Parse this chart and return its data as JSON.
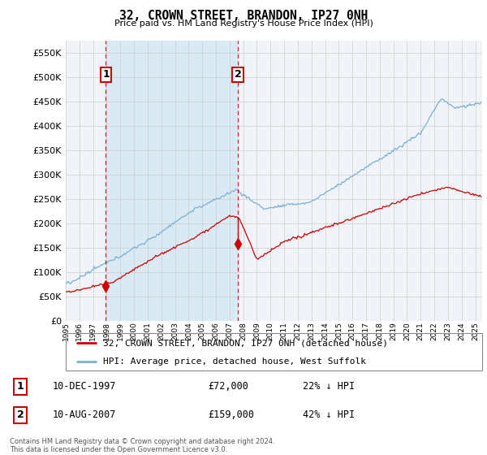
{
  "title": "32, CROWN STREET, BRANDON, IP27 0NH",
  "subtitle": "Price paid vs. HM Land Registry's House Price Index (HPI)",
  "hpi_label": "HPI: Average price, detached house, West Suffolk",
  "property_label": "32, CROWN STREET, BRANDON, IP27 0NH (detached house)",
  "legend_text": "Contains HM Land Registry data © Crown copyright and database right 2024.\nThis data is licensed under the Open Government Licence v3.0.",
  "transaction1_label": "10-DEC-1997",
  "transaction1_price": "£72,000",
  "transaction1_hpi": "22% ↓ HPI",
  "transaction1_date_num": 1997.94,
  "transaction1_price_num": 72000,
  "transaction2_label": "10-AUG-2007",
  "transaction2_price": "£159,000",
  "transaction2_hpi": "42% ↓ HPI",
  "transaction2_date_num": 2007.61,
  "transaction2_price_num": 159000,
  "ylim": [
    0,
    575000
  ],
  "xlim_start": 1995.0,
  "xlim_end": 2025.5,
  "hpi_color": "#7ab0d4",
  "property_color": "#cc0000",
  "dashed_line_color": "#cc0000",
  "shade_color": "#daeaf5",
  "grid_color": "#cccccc",
  "background_color": "#ffffff",
  "plot_bg_color": "#f0f4f8"
}
